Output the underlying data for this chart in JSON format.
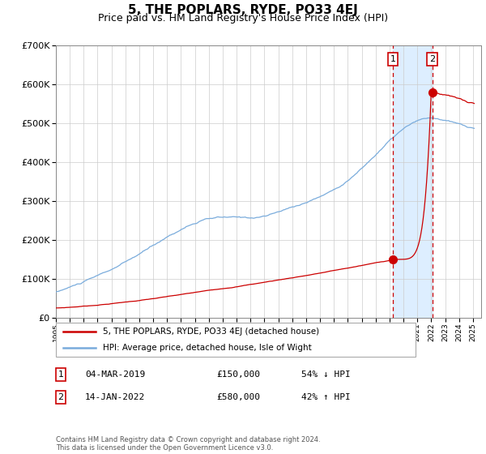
{
  "title": "5, THE POPLARS, RYDE, PO33 4EJ",
  "subtitle": "Price paid vs. HM Land Registry's House Price Index (HPI)",
  "title_fontsize": 11,
  "subtitle_fontsize": 9,
  "background_color": "#ffffff",
  "plot_background_color": "#ffffff",
  "grid_color": "#cccccc",
  "hpi_line_color": "#7aacdc",
  "price_line_color": "#cc0000",
  "highlight_bg_color": "#ddeeff",
  "dashed_line_color": "#cc0000",
  "point1_price": 150000,
  "point2_price": 580000,
  "legend_label_red": "5, THE POPLARS, RYDE, PO33 4EJ (detached house)",
  "legend_label_blue": "HPI: Average price, detached house, Isle of Wight",
  "table_row1": [
    "1",
    "04-MAR-2019",
    "£150,000",
    "54% ↓ HPI"
  ],
  "table_row2": [
    "2",
    "14-JAN-2022",
    "£580,000",
    "42% ↑ HPI"
  ],
  "footer": "Contains HM Land Registry data © Crown copyright and database right 2024.\nThis data is licensed under the Open Government Licence v3.0.",
  "ylim": [
    0,
    700000
  ],
  "yticks": [
    0,
    100000,
    200000,
    300000,
    400000,
    500000,
    600000,
    700000
  ],
  "ytick_labels": [
    "£0",
    "£100K",
    "£200K",
    "£300K",
    "£400K",
    "£500K",
    "£600K",
    "£700K"
  ],
  "start_year": 1995,
  "end_year": 2025,
  "year_ticks": [
    1995,
    1996,
    1997,
    1998,
    1999,
    2000,
    2001,
    2002,
    2003,
    2004,
    2005,
    2006,
    2007,
    2008,
    2009,
    2010,
    2011,
    2012,
    2013,
    2014,
    2015,
    2016,
    2017,
    2018,
    2019,
    2020,
    2021,
    2022,
    2023,
    2024,
    2025
  ]
}
